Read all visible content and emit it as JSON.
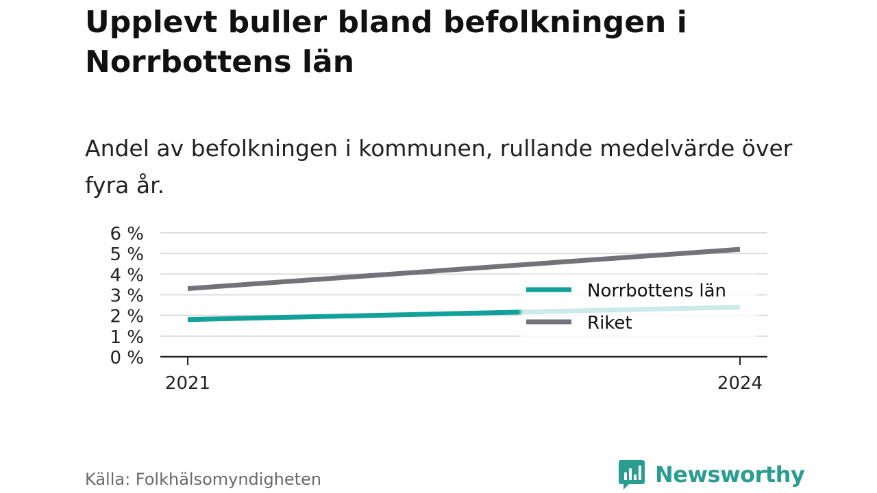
{
  "title": "Upplevt buller bland befolkningen i Norrbottens län",
  "subtitle": "Andel av befolkningen i kommunen, rullande medelvärde över fyra år.",
  "source": "Källa: Folkhälsomyndigheten",
  "brand": {
    "name": "Newsworthy",
    "icon": "newsworthy-logo-icon",
    "color": "#2a9d90"
  },
  "chart_data": {
    "type": "line",
    "x": [
      2021,
      2024
    ],
    "x_tick_labels": [
      "2021",
      "2024"
    ],
    "y_tick_labels": [
      "0 %",
      "1 %",
      "2 %",
      "3 %",
      "4 %",
      "5 %",
      "6 %"
    ],
    "ylim": [
      0,
      6
    ],
    "grid": true,
    "legend_position": "right",
    "series": [
      {
        "name": "Norrbottens län",
        "values": [
          1.8,
          2.4
        ],
        "color": "#12a19a"
      },
      {
        "name": "Riket",
        "values": [
          3.3,
          5.2
        ],
        "color": "#737278"
      }
    ]
  }
}
